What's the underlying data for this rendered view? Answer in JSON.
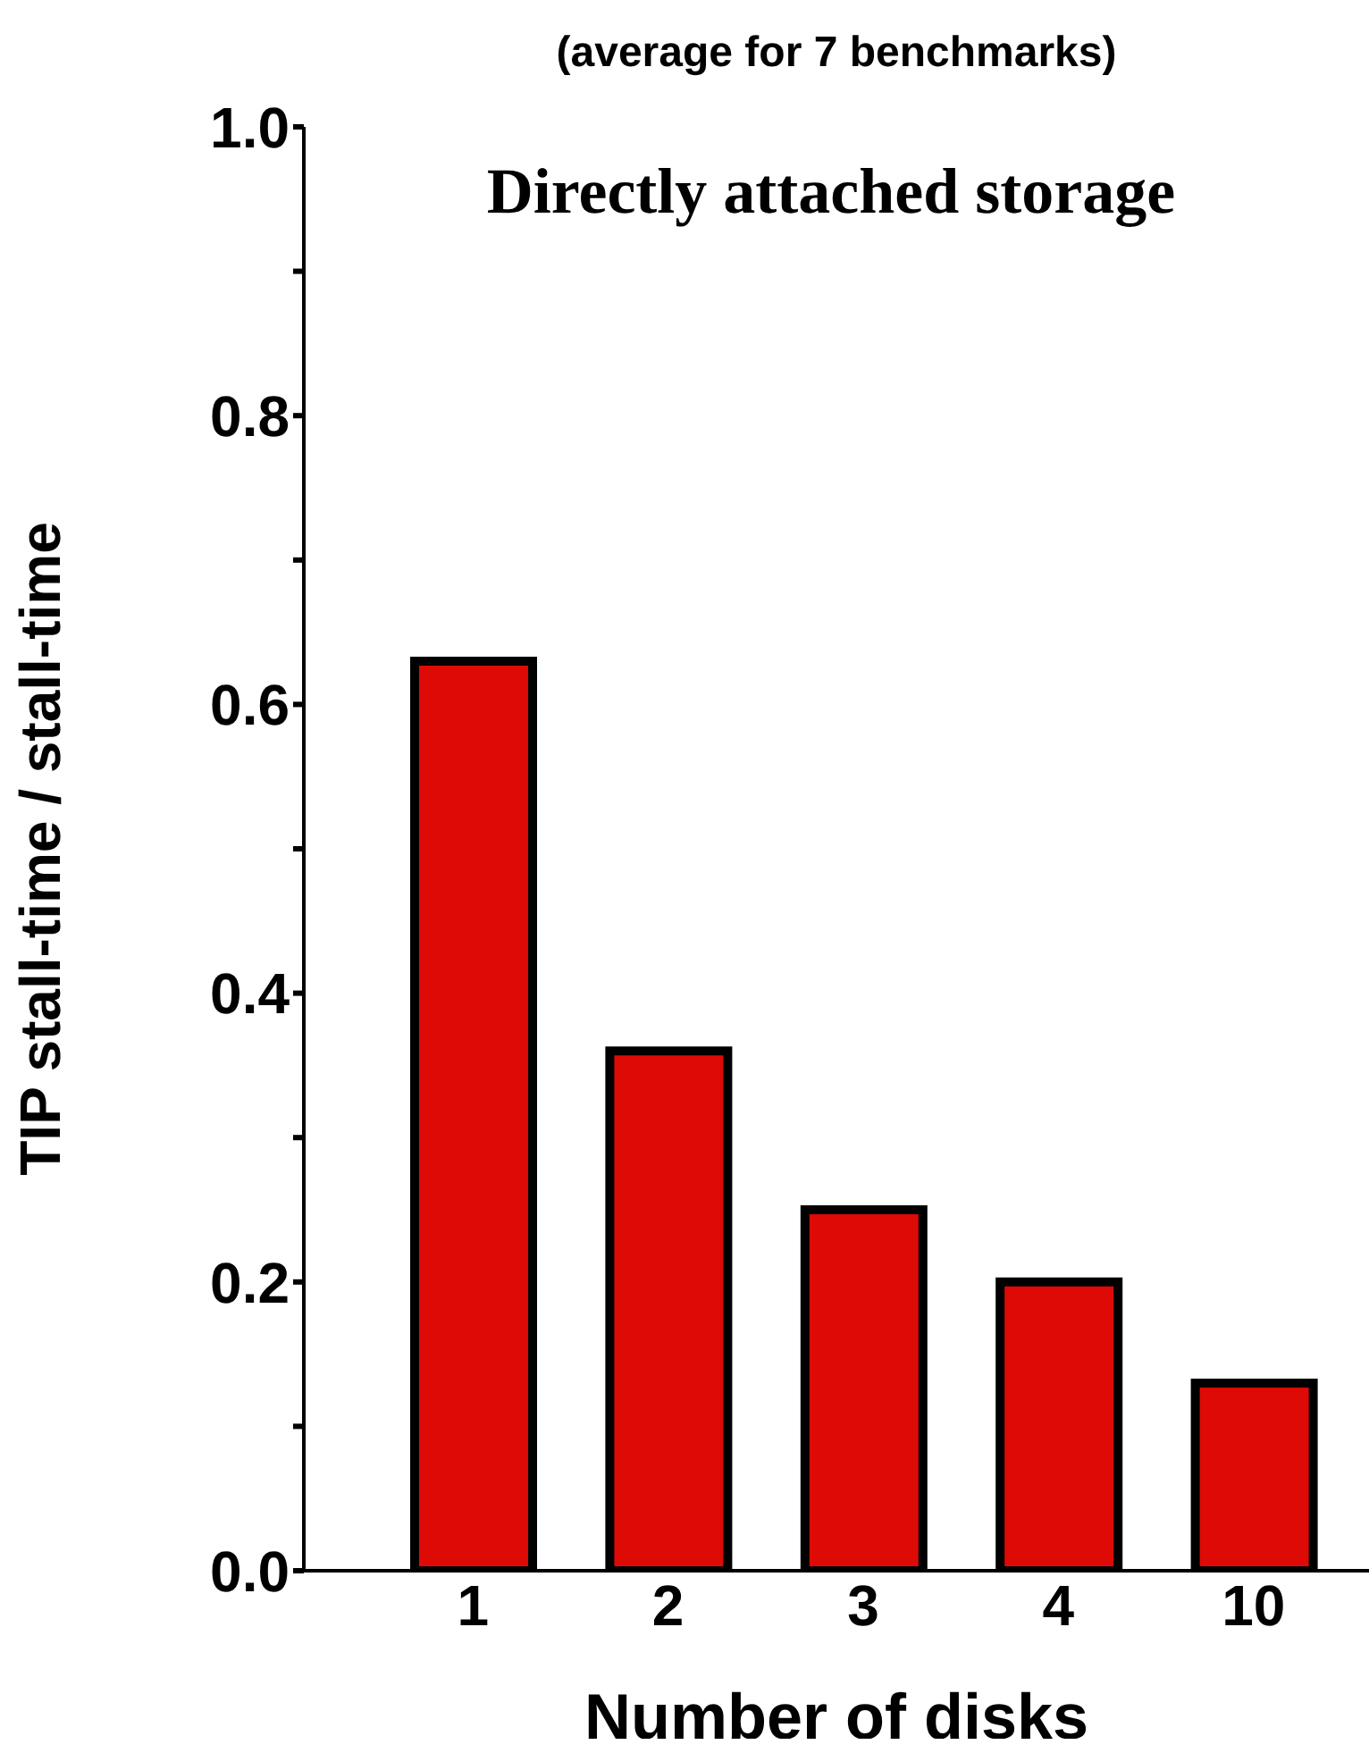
{
  "chart_data": {
    "type": "bar",
    "title": "(average for 7 benchmarks)",
    "xlabel": "Number of disks",
    "ylabel": "TIP stall-time / stall-time",
    "annotations": [
      "Directly attached storage"
    ],
    "categories": [
      "1",
      "2",
      "3",
      "4",
      "10"
    ],
    "values": [
      0.63,
      0.36,
      0.25,
      0.2,
      0.13
    ],
    "color": "#dd0a05",
    "ylim": [
      0,
      1.0
    ],
    "yticks": [
      {
        "value": 0,
        "label": "0.0"
      },
      {
        "value": 0.1,
        "label": null
      },
      {
        "value": 0.2,
        "label": "0.2"
      },
      {
        "value": 0.3,
        "label": null
      },
      {
        "value": 0.4,
        "label": "0.4"
      },
      {
        "value": 0.5,
        "label": null
      },
      {
        "value": 0.6,
        "label": "0.6"
      },
      {
        "value": 0.7,
        "label": null
      },
      {
        "value": 0.8,
        "label": "0.8"
      },
      {
        "value": 0.9,
        "label": null
      },
      {
        "value": 1.0,
        "label": "1.0"
      }
    ],
    "grid": false,
    "legend": false
  }
}
